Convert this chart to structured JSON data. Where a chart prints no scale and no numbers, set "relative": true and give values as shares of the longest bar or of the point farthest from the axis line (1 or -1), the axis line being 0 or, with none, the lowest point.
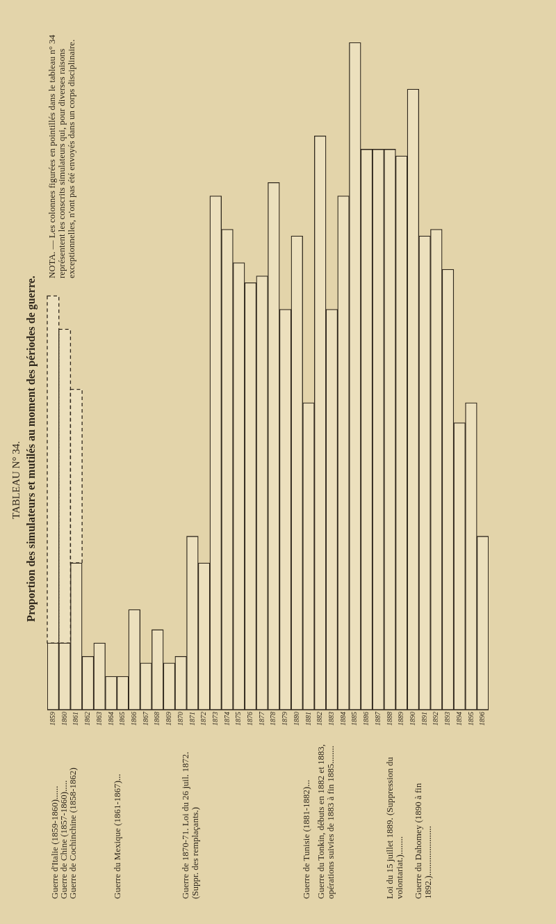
{
  "chart_data": {
    "type": "bar",
    "title": "TABLEAU N° 34.",
    "subtitle": "Proportion des simulateurs et mutilés au moment des périodes de guerre.",
    "categories": [
      "1859",
      "1860",
      "1861",
      "1862",
      "1863",
      "1864",
      "1865",
      "1866",
      "1867",
      "1868",
      "1869",
      "1870",
      "1871",
      "1872",
      "1873",
      "1874",
      "1875",
      "1876",
      "1877",
      "1878",
      "1879",
      "1880",
      "1881",
      "1882",
      "1883",
      "1884",
      "1885",
      "1886",
      "1887",
      "1888",
      "1889",
      "1890",
      "1891",
      "1892",
      "1893",
      "1894",
      "1895",
      "1896"
    ],
    "relative": true,
    "stacked": true,
    "series": [
      {
        "color": "#ece0bd",
        "line_style": "solid",
        "values": [
          0.1,
          0.1,
          0.22,
          0.08,
          0.1,
          0.05,
          0.05,
          0.15,
          0.07,
          0.12,
          0.07,
          0.08,
          0.26,
          0.22,
          0.77,
          0.72,
          0.67,
          0.64,
          0.65,
          0.79,
          0.6,
          0.71,
          0.46,
          0.86,
          0.6,
          0.77,
          1,
          0.84,
          0.84,
          0.84,
          0.83,
          0.93,
          0.71,
          0.72,
          0.66,
          0.43,
          0.46,
          0.26
        ]
      },
      {
        "color": "#ece0bd",
        "line_style": "dashed",
        "values": [
          0.52,
          0.47,
          0.26,
          null,
          null,
          null,
          null,
          null,
          null,
          null,
          null,
          null,
          null,
          null,
          null,
          null,
          null,
          null,
          null,
          null,
          null,
          null,
          null,
          null,
          null,
          null,
          null,
          null,
          null,
          null,
          null,
          null,
          null,
          null,
          null,
          null,
          null,
          null
        ]
      }
    ],
    "annotations": [
      "NOTA. — Les colonnes figurées en pointillés dans le tableau n° 34 représentent les conscrits simulateurs qui, pour diverses raisons exceptionnelles, n'ont pas été envoyés dans un corps disciplinaire.",
      "Guerre d'Italie (1859-1860)......",
      "Guerre de Chine (1857-1860).....",
      "Guerre de Cochinchine (1858-1862)",
      "Guerre du Mexique (1861-1867)...",
      "Guerre de 1870-71. Loi du 26 juil. 1872. (Suppr. des remplaçants.)",
      "Guerre de Tunisie (1881-1882)...",
      "Guerre du Tonkin, débuts en 1882 et 1883, opérations suivies de 1883 à fin 1885........",
      "Loi du 15 juillet 1889. (Suppression du volontariat.)........",
      "Guerre du Dahomey (1890 à fin 1892.)......................"
    ]
  }
}
